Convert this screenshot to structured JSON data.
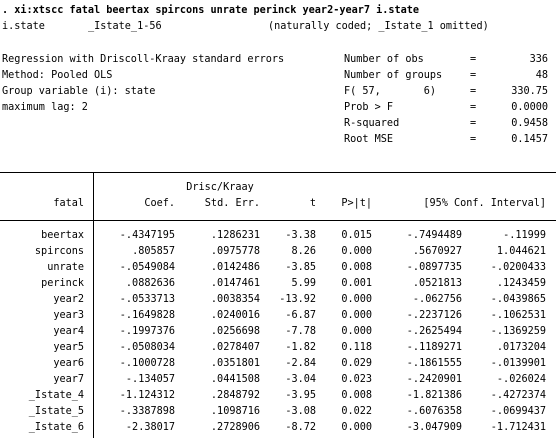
{
  "command": ". xi:xtscc fatal beertax spircons unrate perinck year2-year7 i.state",
  "istate_line": {
    "var": "i.state",
    "range": "_Istate_1-56",
    "note": "(naturally coded; _Istate_1 omitted)"
  },
  "info_left": [
    "Regression with Driscoll-Kraay standard errors",
    "Method: Pooled OLS",
    "Group variable (i): state",
    "maximum lag: 2"
  ],
  "stats": [
    {
      "label": "Number of obs",
      "eq": "=",
      "value": "336"
    },
    {
      "label": "Number of groups",
      "eq": "=",
      "value": "48"
    },
    {
      "label": "F( 57,       6)",
      "eq": "=",
      "value": "330.75"
    },
    {
      "label": "Prob > F",
      "eq": "=",
      "value": "0.0000"
    },
    {
      "label": "R-squared",
      "eq": "=",
      "value": "0.9458"
    },
    {
      "label": "Root MSE",
      "eq": "=",
      "value": "0.1457"
    }
  ],
  "table": {
    "header_top": "Drisc/Kraay",
    "depvar": "fatal",
    "columns": [
      "Coef.",
      "Std. Err.",
      "t",
      "P>|t|",
      "[95% Conf. Interval]"
    ],
    "rows": [
      {
        "var": "beertax",
        "coef": "-.4347195",
        "se": ".1286231",
        "t": "-3.38",
        "p": "0.015",
        "lo": "-.7494489",
        "hi": "-.11999"
      },
      {
        "var": "spircons",
        "coef": ".805857",
        "se": ".0975778",
        "t": "8.26",
        "p": "0.000",
        "lo": ".5670927",
        "hi": "1.044621"
      },
      {
        "var": "unrate",
        "coef": "-.0549084",
        "se": ".0142486",
        "t": "-3.85",
        "p": "0.008",
        "lo": "-.0897735",
        "hi": "-.0200433"
      },
      {
        "var": "perinck",
        "coef": ".0882636",
        "se": ".0147461",
        "t": "5.99",
        "p": "0.001",
        "lo": ".0521813",
        "hi": ".1243459"
      },
      {
        "var": "year2",
        "coef": "-.0533713",
        "se": ".0038354",
        "t": "-13.92",
        "p": "0.000",
        "lo": "-.062756",
        "hi": "-.0439865"
      },
      {
        "var": "year3",
        "coef": "-.1649828",
        "se": ".0240016",
        "t": "-6.87",
        "p": "0.000",
        "lo": "-.2237126",
        "hi": "-.1062531"
      },
      {
        "var": "year4",
        "coef": "-.1997376",
        "se": ".0256698",
        "t": "-7.78",
        "p": "0.000",
        "lo": "-.2625494",
        "hi": "-.1369259"
      },
      {
        "var": "year5",
        "coef": "-.0508034",
        "se": ".0278407",
        "t": "-1.82",
        "p": "0.118",
        "lo": "-.1189271",
        "hi": ".0173204"
      },
      {
        "var": "year6",
        "coef": "-.1000728",
        "se": ".0351801",
        "t": "-2.84",
        "p": "0.029",
        "lo": "-.1861555",
        "hi": "-.0139901"
      },
      {
        "var": "year7",
        "coef": "-.134057",
        "se": ".0441508",
        "t": "-3.04",
        "p": "0.023",
        "lo": "-.2420901",
        "hi": "-.026024"
      },
      {
        "var": "_Istate_4",
        "coef": "-1.124312",
        "se": ".2848792",
        "t": "-3.95",
        "p": "0.008",
        "lo": "-1.821386",
        "hi": "-.4272374"
      },
      {
        "var": "_Istate_5",
        "coef": "-.3387898",
        "se": ".1098716",
        "t": "-3.08",
        "p": "0.022",
        "lo": "-.6076358",
        "hi": "-.0699437"
      },
      {
        "var": "_Istate_6",
        "coef": "-2.38017",
        "se": ".2728906",
        "t": "-8.72",
        "p": "0.000",
        "lo": "-3.047909",
        "hi": "-1.712431"
      }
    ]
  }
}
